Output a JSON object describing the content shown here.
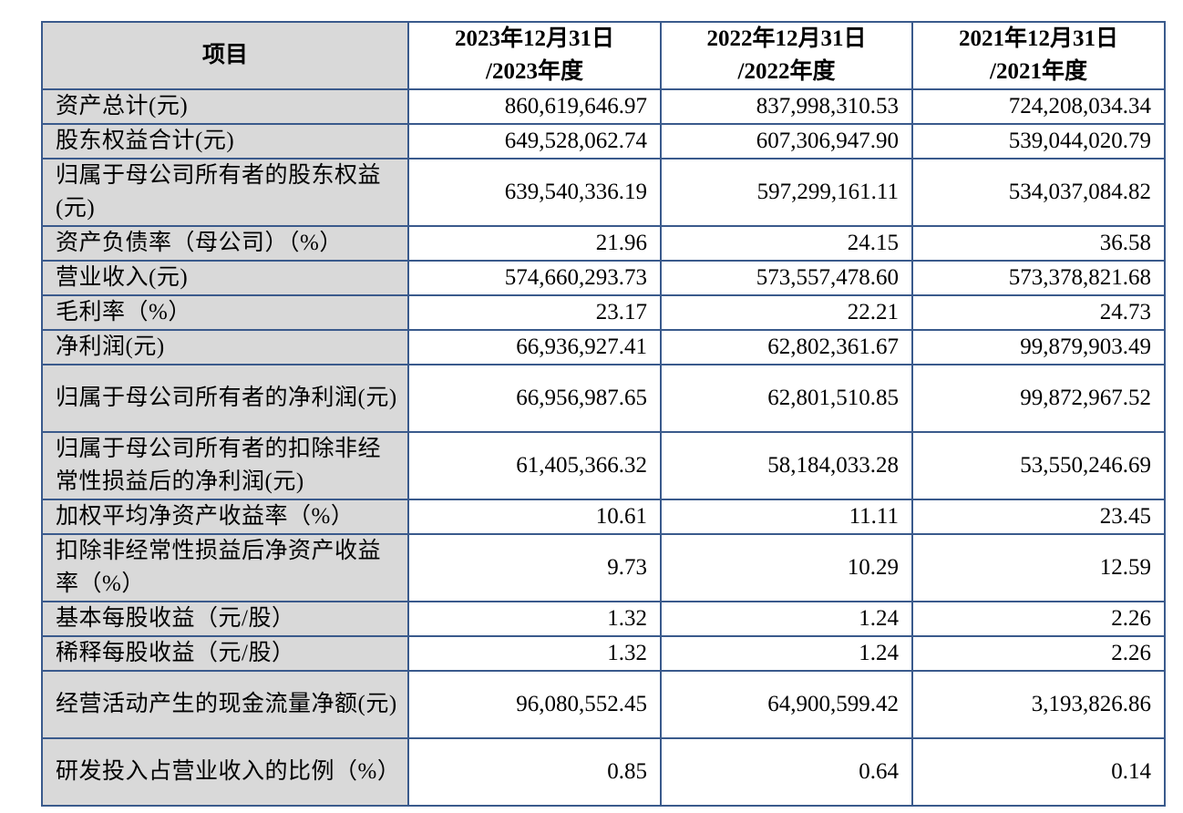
{
  "table": {
    "header": {
      "label": "项目",
      "columns": [
        {
          "line1": "2023年12月31日",
          "line2": "/2023年度"
        },
        {
          "line1": "2022年12月31日",
          "line2": "/2022年度"
        },
        {
          "line1": "2021年12月31日",
          "line2": "/2021年度"
        }
      ]
    },
    "rows": [
      {
        "label": "资产总计(元)",
        "values": [
          "860,619,646.97",
          "837,998,310.53",
          "724,208,034.34"
        ]
      },
      {
        "label": "股东权益合计(元)",
        "values": [
          "649,528,062.74",
          "607,306,947.90",
          "539,044,020.79"
        ]
      },
      {
        "label": "归属于母公司所有者的股东权益(元)",
        "values": [
          "639,540,336.19",
          "597,299,161.11",
          "534,037,084.82"
        ]
      },
      {
        "label": "资产负债率（母公司）（%）",
        "values": [
          "21.96",
          "24.15",
          "36.58"
        ]
      },
      {
        "label": "营业收入(元)",
        "values": [
          "574,660,293.73",
          "573,557,478.60",
          "573,378,821.68"
        ]
      },
      {
        "label": "毛利率（%）",
        "values": [
          "23.17",
          "22.21",
          "24.73"
        ]
      },
      {
        "label": "净利润(元)",
        "values": [
          "66,936,927.41",
          "62,802,361.67",
          "99,879,903.49"
        ]
      },
      {
        "label": "归属于母公司所有者的净利润(元)",
        "values": [
          "66,956,987.65",
          "62,801,510.85",
          "99,872,967.52"
        ]
      },
      {
        "label": "归属于母公司所有者的扣除非经常性损益后的净利润(元)",
        "values": [
          "61,405,366.32",
          "58,184,033.28",
          "53,550,246.69"
        ]
      },
      {
        "label": "加权平均净资产收益率（%）",
        "values": [
          "10.61",
          "11.11",
          "23.45"
        ]
      },
      {
        "label": "扣除非经常性损益后净资产收益率（%）",
        "values": [
          "9.73",
          "10.29",
          "12.59"
        ]
      },
      {
        "label": "基本每股收益（元/股）",
        "values": [
          "1.32",
          "1.24",
          "2.26"
        ]
      },
      {
        "label": "稀释每股收益（元/股）",
        "values": [
          "1.32",
          "1.24",
          "2.26"
        ]
      },
      {
        "label": "经营活动产生的现金流量净额(元)",
        "values": [
          "96,080,552.45",
          "64,900,599.42",
          "3,193,826.86"
        ]
      },
      {
        "label": "研发投入占营业收入的比例（%）",
        "values": [
          "0.85",
          "0.64",
          "0.14"
        ]
      }
    ]
  }
}
